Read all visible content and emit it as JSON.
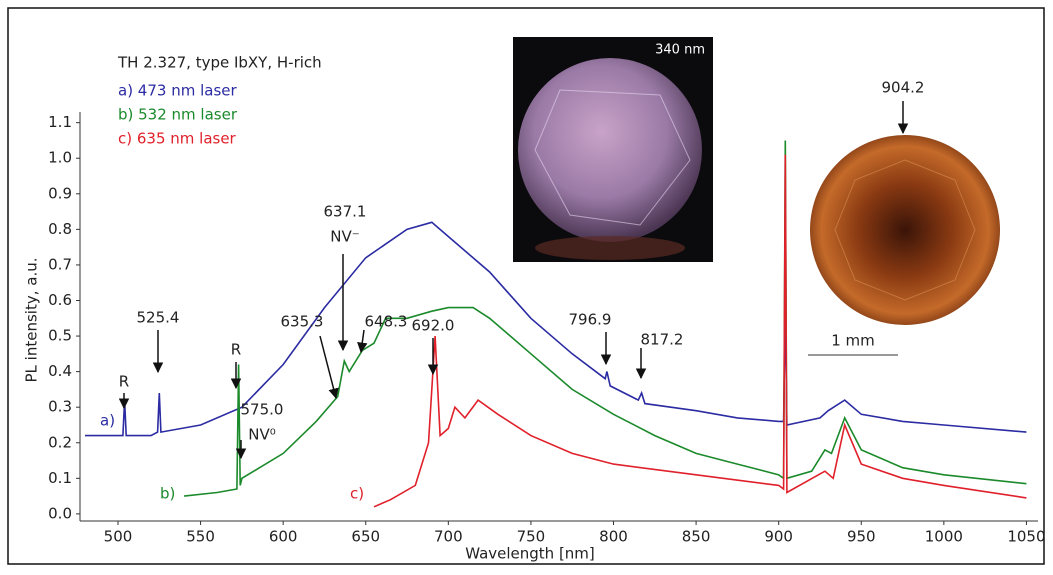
{
  "chart_data": {
    "type": "line",
    "title": "TH 2.327, type IbXY, H-rich",
    "x_label": "Wavelength [nm]",
    "y_label": "PL intensity, a.u.",
    "xlim": [
      477,
      1057
    ],
    "ylim": [
      -0.02,
      1.13
    ],
    "xticks": [
      500,
      550,
      600,
      650,
      700,
      750,
      800,
      850,
      900,
      950,
      1000,
      1050
    ],
    "yticks": [
      {
        "value": 0,
        "label": "0.0"
      },
      0.1,
      0.2,
      0.3,
      0.4,
      0.5,
      0.6,
      0.7,
      0.8,
      0.9,
      {
        "value": 1,
        "label": "1.0"
      },
      1.1
    ],
    "grid": false,
    "series": [
      {
        "name": "a) 473 nm laser",
        "label": "a)",
        "color": "#2b2ba3",
        "x": [
          480,
          500,
          503,
          504,
          505,
          520,
          524,
          525,
          526,
          550,
          575,
          600,
          625,
          650,
          675,
          690,
          700,
          725,
          750,
          775,
          795,
          796,
          798,
          815,
          817,
          819,
          850,
          875,
          900,
          903,
          904,
          905,
          925,
          930,
          940,
          950,
          975,
          1000,
          1050
        ],
        "values": [
          0.22,
          0.22,
          0.22,
          0.32,
          0.22,
          0.22,
          0.23,
          0.34,
          0.23,
          0.25,
          0.3,
          0.42,
          0.58,
          0.72,
          0.8,
          0.82,
          0.78,
          0.68,
          0.55,
          0.45,
          0.38,
          0.4,
          0.36,
          0.32,
          0.34,
          0.31,
          0.29,
          0.27,
          0.26,
          0.26,
          0.58,
          0.25,
          0.27,
          0.29,
          0.32,
          0.28,
          0.26,
          0.25,
          0.23
        ]
      },
      {
        "name": "b) 532 nm laser",
        "label": "b)",
        "color": "#1b8a2b",
        "x": [
          540,
          560,
          572,
          573,
          574,
          575,
          600,
          620,
          633,
          635,
          637,
          640,
          648,
          655,
          662,
          675,
          690,
          700,
          715,
          725,
          750,
          775,
          800,
          825,
          850,
          875,
          900,
          903,
          904,
          905,
          920,
          928,
          932,
          940,
          950,
          975,
          1000,
          1050
        ],
        "values": [
          0.05,
          0.06,
          0.07,
          0.42,
          0.08,
          0.1,
          0.17,
          0.26,
          0.33,
          0.38,
          0.43,
          0.4,
          0.46,
          0.48,
          0.55,
          0.55,
          0.57,
          0.58,
          0.58,
          0.55,
          0.45,
          0.35,
          0.28,
          0.22,
          0.17,
          0.14,
          0.11,
          0.1,
          1.05,
          0.1,
          0.12,
          0.18,
          0.17,
          0.27,
          0.18,
          0.13,
          0.11,
          0.085
        ]
      },
      {
        "name": "c) 635 nm laser",
        "label": "c)",
        "color": "#e0202a",
        "x": [
          655,
          665,
          680,
          688,
          692,
          695,
          700,
          704,
          710,
          718,
          730,
          750,
          775,
          800,
          850,
          900,
          903,
          904,
          905,
          928,
          933,
          940,
          950,
          975,
          1000,
          1050
        ],
        "values": [
          0.02,
          0.04,
          0.08,
          0.2,
          0.5,
          0.22,
          0.24,
          0.3,
          0.27,
          0.32,
          0.28,
          0.22,
          0.17,
          0.14,
          0.11,
          0.08,
          0.07,
          1.01,
          0.06,
          0.12,
          0.1,
          0.25,
          0.14,
          0.1,
          0.08,
          0.045
        ]
      }
    ],
    "annotations": [
      {
        "lines": [
          "R"
        ]
      },
      {
        "lines": [
          "525.4"
        ]
      },
      {
        "lines": [
          "R"
        ]
      },
      {
        "lines": [
          "575.0",
          "NV⁰"
        ]
      },
      {
        "lines": [
          "635.3"
        ]
      },
      {
        "lines": [
          "637.1",
          "NV⁻"
        ]
      },
      {
        "lines": [
          "648.3"
        ]
      },
      {
        "lines": [
          "692.0"
        ]
      },
      {
        "lines": [
          "796.9"
        ]
      },
      {
        "lines": [
          "817.2"
        ]
      },
      {
        "lines": [
          "904.2"
        ]
      }
    ],
    "inset_label": "340 nm",
    "scale_bar_label": "1 mm"
  }
}
